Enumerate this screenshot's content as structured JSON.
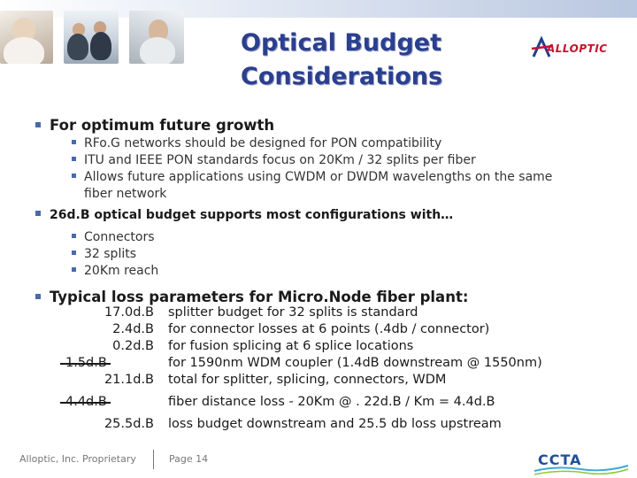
{
  "header": {
    "title_line1": "Optical Budget",
    "title_line2": "Considerations",
    "logo_text": "ALLOPTIC"
  },
  "bullets": [
    {
      "text": "For optimum future growth",
      "sub": [
        "RFo.G networks should be designed for PON compatibility",
        "ITU and IEEE PON standards focus on 20Km / 32 splits per fiber",
        "Allows future applications using CWDM or DWDM wavelengths on the same",
        "fiber network"
      ]
    },
    {
      "text": "26d.B optical budget supports most configurations with…",
      "sub": [
        "Connectors",
        "32 splits",
        "20Km reach"
      ]
    },
    {
      "text": "Typical loss parameters for Micro.Node fiber plant:"
    }
  ],
  "loss_table": [
    {
      "value": "17.0d.B",
      "desc": "splitter budget for 32 splits is standard"
    },
    {
      "value": "2.4d.B",
      "desc": "for connector losses at 6 points (.4db / connector)"
    },
    {
      "value": "0.2d.B",
      "desc": "for fusion splicing at 6 splice locations"
    },
    {
      "value": "1.5d.B",
      "desc": "for 1590nm WDM coupler (1.4dB downstream @ 1550nm)"
    },
    {
      "value": "21.1d.B",
      "desc": "total for splitter, splicing, connectors, WDM"
    },
    {
      "value": "4.4d.B",
      "desc": "fiber distance loss - 20Km @ . 22d.B / Km = 4.4d.B"
    },
    {
      "value": "25.5d.B",
      "desc": "loss budget downstream and 25.5 db loss upstream"
    }
  ],
  "footer": {
    "company": "Alloptic, Inc. Proprietary",
    "page": "Page 14",
    "badge_text": "CCTA"
  }
}
